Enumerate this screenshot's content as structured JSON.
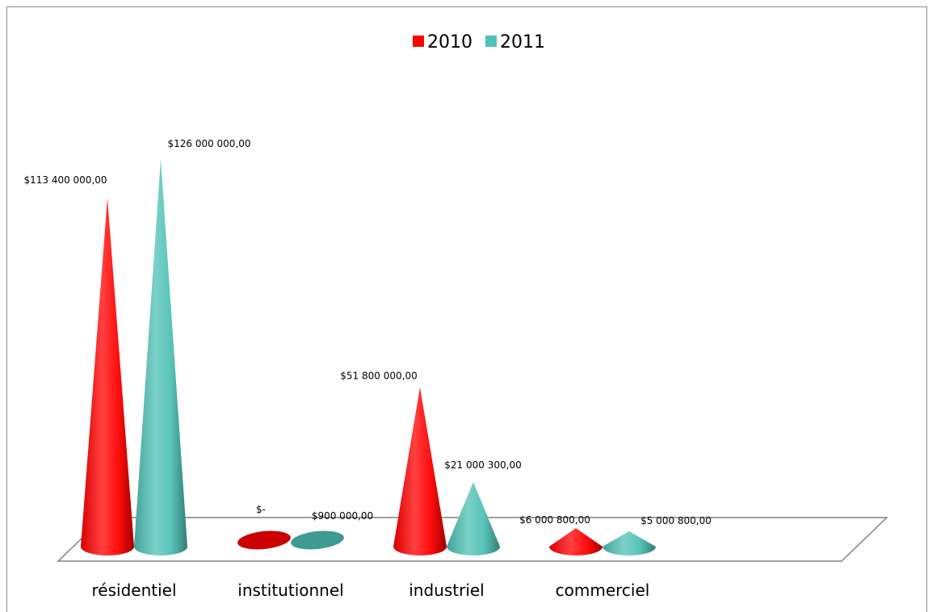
{
  "chart_data": {
    "type": "bar",
    "shape": "cone-3d",
    "categories": [
      "résidentiel",
      "institutionnel",
      "industriel",
      "commerciel"
    ],
    "series": [
      {
        "name": "2010",
        "color": "#ff0000",
        "values": [
          113400000,
          0,
          51800000,
          6000800
        ],
        "labels": [
          "$113 400 000,00",
          "$-",
          "$51 800 000,00",
          "$6 000 800,00"
        ]
      },
      {
        "name": "2011",
        "color": "#4fc1b5",
        "values": [
          126000000,
          900000,
          21000300,
          5000800
        ],
        "labels": [
          "$126 000 000,00",
          "$900 000,00",
          "$21 000 300,00",
          "$5 000 800,00"
        ]
      }
    ],
    "ylim": [
      0,
      126000000
    ],
    "legend_position": "top-center",
    "grid": false
  }
}
